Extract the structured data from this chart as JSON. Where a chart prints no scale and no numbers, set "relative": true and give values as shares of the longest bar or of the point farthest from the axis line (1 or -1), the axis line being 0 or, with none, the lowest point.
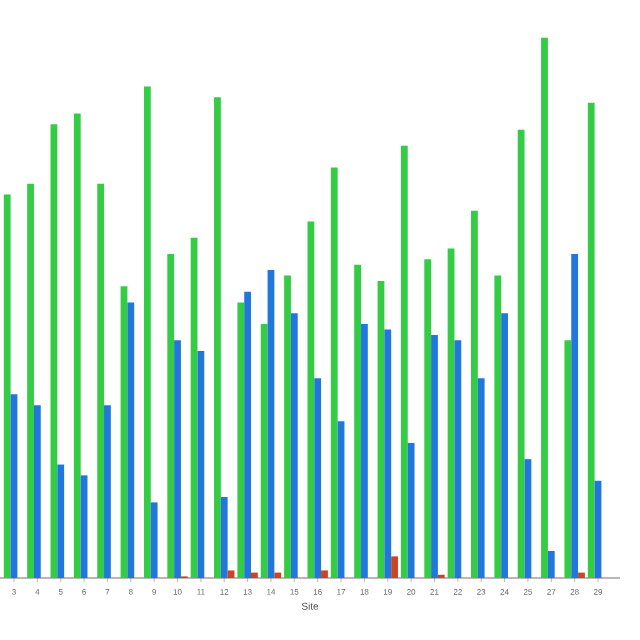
{
  "chart_data": {
    "type": "bar",
    "relative": true,
    "xlabel": "Site",
    "categories": [
      "3",
      "4",
      "5",
      "6",
      "7",
      "8",
      "9",
      "10",
      "11",
      "12",
      "13",
      "14",
      "15",
      "16",
      "17",
      "18",
      "19",
      "20",
      "21",
      "22",
      "23",
      "24",
      "25",
      "27",
      "28",
      "29"
    ],
    "series": [
      {
        "color": "#33cc44",
        "values": [
          0.71,
          0.73,
          0.84,
          0.86,
          0.73,
          0.54,
          0.91,
          0.6,
          0.63,
          0.89,
          0.51,
          0.47,
          0.56,
          0.66,
          0.76,
          0.58,
          0.55,
          0.8,
          0.59,
          0.61,
          0.68,
          0.56,
          0.83,
          1.0,
          0.44,
          0.88
        ]
      },
      {
        "color": "#2277dd",
        "values": [
          0.34,
          0.32,
          0.21,
          0.19,
          0.32,
          0.51,
          0.14,
          0.44,
          0.42,
          0.15,
          0.53,
          0.57,
          0.49,
          0.37,
          0.29,
          0.47,
          0.46,
          0.25,
          0.45,
          0.44,
          0.37,
          0.49,
          0.22,
          0.05,
          0.6,
          0.18
        ]
      },
      {
        "color": "#cc4422",
        "values": [
          null,
          null,
          null,
          null,
          null,
          null,
          null,
          0.003,
          null,
          0.014,
          0.01,
          0.01,
          null,
          0.014,
          null,
          null,
          0.04,
          null,
          0.006,
          null,
          null,
          null,
          null,
          null,
          0.01,
          null
        ]
      }
    ]
  }
}
